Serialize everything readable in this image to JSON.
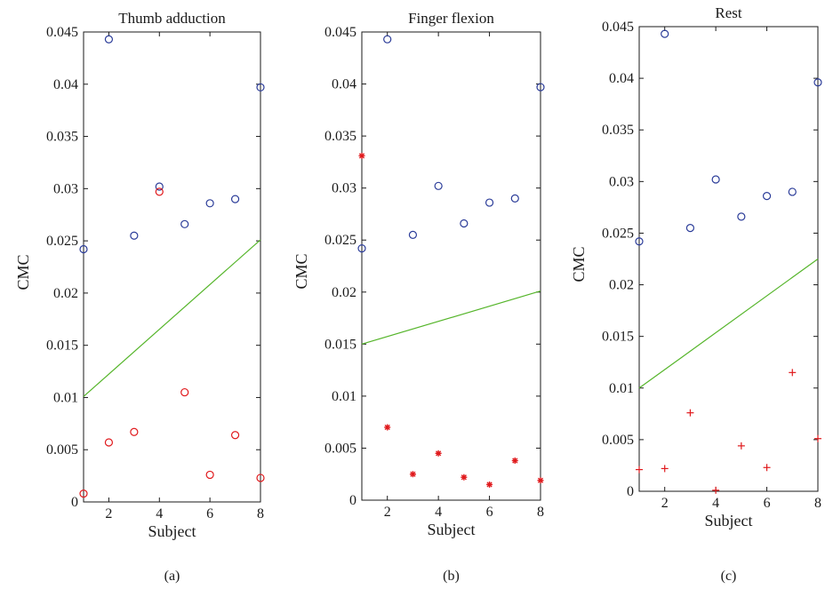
{
  "chart_data": [
    {
      "type": "scatter",
      "title": "Thumb adduction",
      "xlabel": "Subject",
      "ylabel": "CMC",
      "caption": "(a)",
      "xlim": [
        1,
        8
      ],
      "ylim": [
        0,
        0.045
      ],
      "xticks": [
        "2",
        "4",
        "6",
        "8"
      ],
      "yticks": [
        "0",
        "0.005",
        "0.01",
        "0.015",
        "0.02",
        "0.025",
        "0.03",
        "0.035",
        "0.04",
        "0.045"
      ],
      "grid": false,
      "series": [
        {
          "marker": "circle",
          "color": "#2b3c99",
          "x": [
            1,
            2,
            3,
            4,
            5,
            6,
            7,
            8
          ],
          "y": [
            0.0242,
            0.0443,
            0.0255,
            0.0302,
            0.0266,
            0.0286,
            0.029,
            0.0397
          ]
        },
        {
          "marker": "circle",
          "color": "#e0191c",
          "x": [
            1,
            2,
            3,
            4,
            5,
            6,
            7,
            8
          ],
          "y": [
            0.0008,
            0.0057,
            0.0067,
            0.0297,
            0.0105,
            0.0026,
            0.0064,
            0.0023
          ]
        },
        {
          "marker": "line",
          "color": "#55b52a",
          "x": [
            1,
            8
          ],
          "y": [
            0.0101,
            0.0251
          ]
        }
      ]
    },
    {
      "type": "scatter",
      "title": "Finger flexion",
      "xlabel": "Subject",
      "ylabel": "CMC",
      "caption": "(b)",
      "xlim": [
        1,
        8
      ],
      "ylim": [
        0,
        0.045
      ],
      "xticks": [
        "2",
        "4",
        "6",
        "8"
      ],
      "yticks": [
        "0",
        "0.005",
        "0.01",
        "0.015",
        "0.02",
        "0.025",
        "0.03",
        "0.035",
        "0.04",
        "0.045"
      ],
      "grid": false,
      "series": [
        {
          "marker": "circle",
          "color": "#2b3c99",
          "x": [
            1,
            2,
            3,
            4,
            5,
            6,
            7,
            8
          ],
          "y": [
            0.0242,
            0.0443,
            0.0255,
            0.0302,
            0.0266,
            0.0286,
            0.029,
            0.0397
          ]
        },
        {
          "marker": "star",
          "color": "#e0191c",
          "x": [
            1,
            2,
            3,
            4,
            5,
            6,
            7,
            8
          ],
          "y": [
            0.0331,
            0.007,
            0.0025,
            0.0045,
            0.0022,
            0.0015,
            0.0038,
            0.0019
          ]
        },
        {
          "marker": "line",
          "color": "#55b52a",
          "x": [
            1,
            8
          ],
          "y": [
            0.015,
            0.0201
          ]
        }
      ]
    },
    {
      "type": "scatter",
      "title": "Rest",
      "xlabel": "Subject",
      "ylabel": "CMC",
      "caption": "(c)",
      "xlim": [
        1,
        8
      ],
      "ylim": [
        0,
        0.045
      ],
      "xticks": [
        "2",
        "4",
        "6",
        "8"
      ],
      "yticks": [
        "0",
        "0.005",
        "0.01",
        "0.015",
        "0.02",
        "0.025",
        "0.03",
        "0.035",
        "0.04",
        "0.045"
      ],
      "grid": false,
      "series": [
        {
          "marker": "circle",
          "color": "#2b3c99",
          "x": [
            1,
            2,
            3,
            4,
            5,
            6,
            7,
            8
          ],
          "y": [
            0.0242,
            0.0443,
            0.0255,
            0.0302,
            0.0266,
            0.0286,
            0.029,
            0.0396
          ]
        },
        {
          "marker": "plus",
          "color": "#e0191c",
          "x": [
            1,
            2,
            3,
            4,
            5,
            6,
            7,
            8
          ],
          "y": [
            0.0021,
            0.0022,
            0.0076,
            0.0001,
            0.0044,
            0.0023,
            0.0115,
            0.0051
          ]
        },
        {
          "marker": "line",
          "color": "#55b52a",
          "x": [
            1,
            8
          ],
          "y": [
            0.01,
            0.0225
          ]
        }
      ]
    }
  ]
}
